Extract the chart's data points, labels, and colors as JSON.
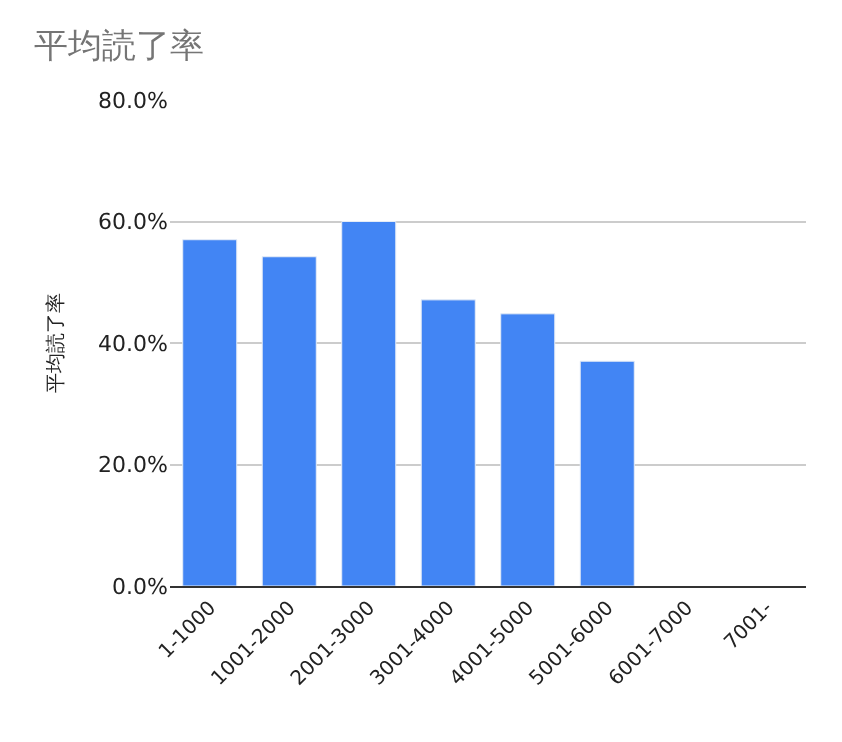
{
  "chart_data": {
    "type": "bar",
    "title": "平均読了率",
    "ylabel": "平均読了率",
    "categories": [
      "1-1000",
      "1001-2000",
      "2001-3000",
      "3001-4000",
      "4001-5000",
      "5001-6000",
      "6001-7000",
      "7001-"
    ],
    "values": [
      57,
      54.2,
      60,
      47.1,
      44.8,
      37,
      null,
      null
    ],
    "color": "#4285f4",
    "ylim": [
      0,
      80
    ],
    "yticks": [
      {
        "value": 0,
        "label": "0.0%"
      },
      {
        "value": 20,
        "label": "20.0%"
      },
      {
        "value": 40,
        "label": "40.0%"
      },
      {
        "value": 60,
        "label": "60.0%"
      },
      {
        "value": 80,
        "label": "80.0%"
      }
    ],
    "grid": "y"
  }
}
